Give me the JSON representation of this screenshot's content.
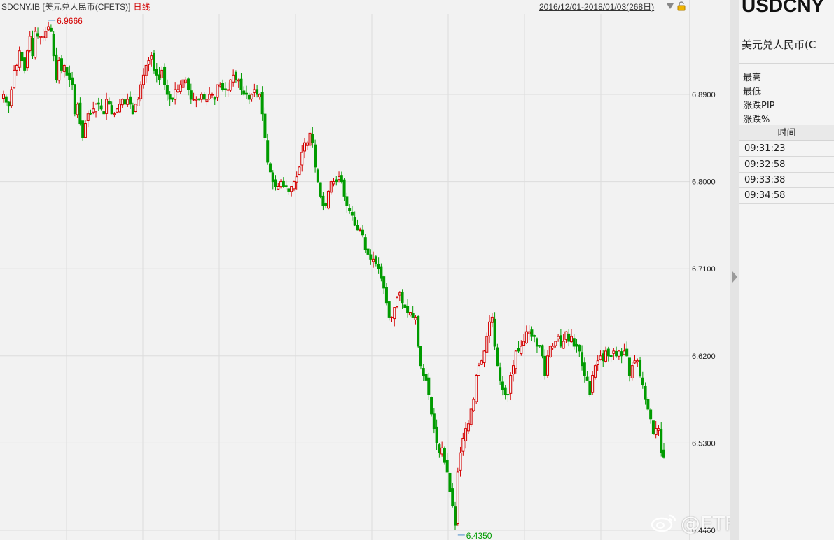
{
  "header": {
    "symbol_label": "SDCNY.IB [美元兑人民币(CFETS)]",
    "period_label": "日线",
    "date_range": "2016/12/01-2018/01/03(268日)"
  },
  "side_panel": {
    "code": "USDCNY",
    "name": "美元兑人民币(C",
    "stats": [
      "最高",
      "最低",
      "涨跌PIP",
      "涨跌%"
    ],
    "time_header": "时间",
    "times": [
      "09:31:23",
      "09:32:58",
      "09:33:38",
      "09:34:58"
    ]
  },
  "watermark": "@ETF拯救世界",
  "colors": {
    "up": "#d40000",
    "down": "#009b00",
    "grid": "#dcdcdc",
    "background": "#f2f2f2"
  },
  "chart_data": {
    "type": "candlestick",
    "ylim": [
      6.44,
      6.98
    ],
    "ticks": [
      6.89,
      6.8,
      6.71,
      6.62,
      6.53,
      6.44
    ],
    "tick_labels": [
      "6.8900",
      "6.8000",
      "6.7100",
      "6.6200",
      "6.5300",
      "6.4400"
    ],
    "high_annotation": {
      "label": "6.9666",
      "value": 6.9666,
      "index": 17
    },
    "low_annotation": {
      "label": "6.4350",
      "value": 6.435,
      "index": 172
    },
    "closes": [
      6.89,
      6.882,
      6.878,
      6.895,
      6.915,
      6.92,
      6.935,
      6.925,
      6.915,
      6.935,
      6.95,
      6.93,
      6.955,
      6.95,
      6.95,
      6.95,
      6.955,
      6.96,
      6.955,
      6.93,
      6.905,
      6.925,
      6.915,
      6.92,
      6.91,
      6.905,
      6.9,
      6.87,
      6.88,
      6.86,
      6.845,
      6.86,
      6.87,
      6.87,
      6.875,
      6.88,
      6.88,
      6.875,
      6.87,
      6.885,
      6.88,
      6.87,
      6.87,
      6.875,
      6.88,
      6.885,
      6.88,
      6.885,
      6.88,
      6.87,
      6.88,
      6.885,
      6.9,
      6.91,
      6.92,
      6.925,
      6.93,
      6.915,
      6.91,
      6.905,
      6.915,
      6.9,
      6.89,
      6.885,
      6.885,
      6.895,
      6.895,
      6.9,
      6.905,
      6.905,
      6.895,
      6.885,
      6.885,
      6.885,
      6.885,
      6.89,
      6.885,
      6.885,
      6.89,
      6.89,
      6.885,
      6.9,
      6.9,
      6.895,
      6.895,
      6.895,
      6.905,
      6.91,
      6.905,
      6.905,
      6.895,
      6.89,
      6.89,
      6.885,
      6.89,
      6.895,
      6.89,
      6.89,
      6.87,
      6.845,
      6.82,
      6.81,
      6.8,
      6.795,
      6.795,
      6.8,
      6.795,
      6.795,
      6.79,
      6.795,
      6.8,
      6.805,
      6.815,
      6.83,
      6.84,
      6.84,
      6.85,
      6.84,
      6.815,
      6.8,
      6.785,
      6.775,
      6.775,
      6.79,
      6.8,
      6.8,
      6.8,
      6.805,
      6.8,
      6.785,
      6.775,
      6.77,
      6.765,
      6.755,
      6.75,
      6.75,
      6.745,
      6.73,
      6.725,
      6.72,
      6.72,
      6.715,
      6.71,
      6.7,
      6.69,
      6.675,
      6.66,
      6.66,
      6.67,
      6.68,
      6.685,
      6.675,
      6.67,
      6.665,
      6.665,
      6.66,
      6.66,
      6.63,
      6.61,
      6.6,
      6.595,
      6.58,
      6.56,
      6.545,
      6.53,
      6.52,
      6.525,
      6.51,
      6.5,
      6.48,
      6.465,
      6.445,
      6.5,
      6.52,
      6.535,
      6.545,
      6.55,
      6.565,
      6.575,
      6.6,
      6.61,
      6.615,
      6.625,
      6.64,
      6.655,
      6.66,
      6.63,
      6.61,
      6.595,
      6.585,
      6.58,
      6.58,
      6.6,
      6.61,
      6.625,
      6.625,
      6.63,
      6.635,
      6.645,
      6.645,
      6.64,
      6.64,
      6.63,
      6.63,
      6.62,
      6.6,
      6.62,
      6.63,
      6.63,
      6.635,
      6.64,
      6.63,
      6.635,
      6.645,
      6.635,
      6.64,
      6.63,
      6.63,
      6.625,
      6.61,
      6.6,
      6.595,
      6.58,
      6.6,
      6.61,
      6.615,
      6.62,
      6.615,
      6.625,
      6.62,
      6.62,
      6.625,
      6.62,
      6.625,
      6.62,
      6.625,
      6.62,
      6.6,
      6.61,
      6.615,
      6.615,
      6.6,
      6.59,
      6.575,
      6.565,
      6.555,
      6.54,
      6.545,
      6.545,
      6.52,
      6.515
    ]
  }
}
